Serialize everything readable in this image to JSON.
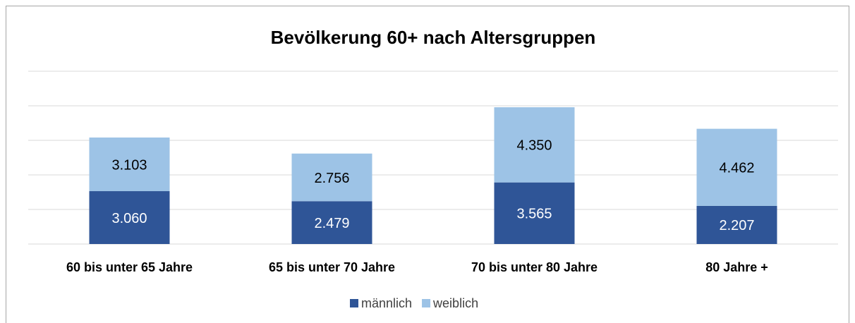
{
  "chart_data": {
    "type": "stacked_bar",
    "title": "Bevölkerung 60+ nach Altersgruppen",
    "categories": [
      "60 bis unter 65 Jahre",
      "65 bis unter 70 Jahre",
      "70 bis unter 80 Jahre",
      "80 Jahre +"
    ],
    "series": [
      {
        "name": "männlich",
        "color": "#2f5597",
        "values": [
          3060,
          2479,
          3565,
          2207
        ],
        "value_labels": [
          "3.060",
          "2.479",
          "3.565",
          "2.207"
        ]
      },
      {
        "name": "weiblich",
        "color": "#9dc3e6",
        "values": [
          3103,
          2756,
          4350,
          4462
        ],
        "value_labels": [
          "3.103",
          "2.756",
          "4.350",
          "4.462"
        ]
      }
    ],
    "ylim": [
      0,
      10000
    ],
    "yticks": [
      0,
      2000,
      4000,
      6000,
      8000,
      10000
    ],
    "grid": true,
    "legend": "bottom"
  }
}
